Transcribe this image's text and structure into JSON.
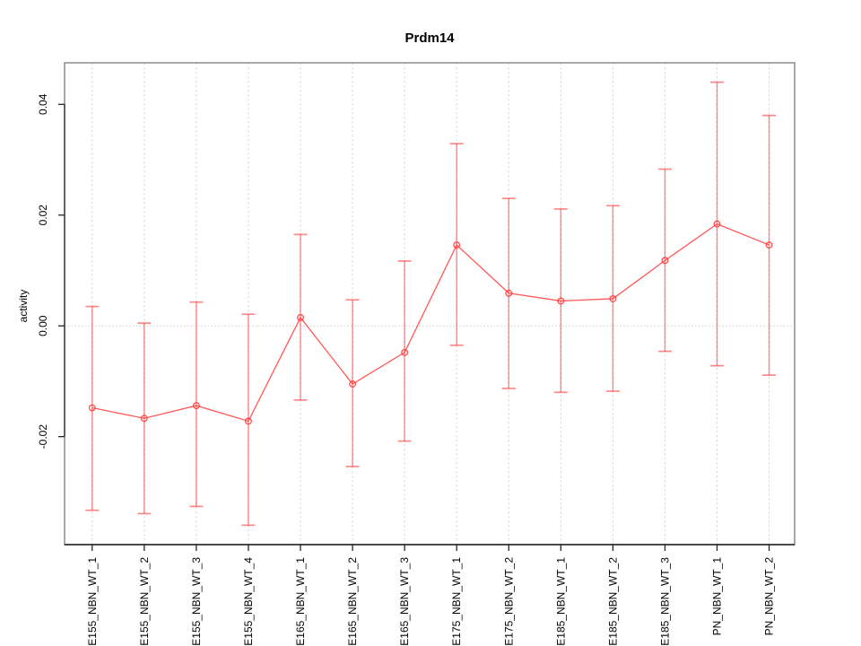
{
  "page": {
    "background": "#ffffff"
  },
  "chart_data": {
    "type": "line",
    "title": "Prdm14",
    "xlabel": "",
    "ylabel": "activity",
    "legend": "none",
    "grid": "vertical-dashed-plus-dotted-zero-line",
    "marker": "open-circle",
    "categories": [
      "E155_NBN_WT_1",
      "E155_NBN_WT_2",
      "E155_NBN_WT_3",
      "E155_NBN_WT_4",
      "E165_NBN_WT_1",
      "E165_NBN_WT_2",
      "E165_NBN_WT_3",
      "E175_NBN_WT_1",
      "E175_NBN_WT_2",
      "E185_NBN_WT_1",
      "E185_NBN_WT_2",
      "E185_NBN_WT_3",
      "PN_NBN_WT_1",
      "PN_NBN_WT_2"
    ],
    "series": [
      {
        "name": "activity",
        "values": [
          -0.0148,
          -0.0167,
          -0.0144,
          -0.0172,
          0.0015,
          -0.0105,
          -0.0048,
          0.0146,
          0.0059,
          0.0045,
          0.0049,
          0.0118,
          0.0184,
          0.0146
        ],
        "error_low": [
          -0.0333,
          -0.0339,
          -0.0326,
          -0.036,
          -0.0134,
          -0.0254,
          -0.0208,
          -0.0035,
          -0.0113,
          -0.012,
          -0.0118,
          -0.0046,
          -0.0072,
          -0.0089
        ],
        "error_high": [
          0.0035,
          0.0005,
          0.0043,
          0.0021,
          0.0165,
          0.0047,
          0.0117,
          0.0329,
          0.023,
          0.0211,
          0.0217,
          0.0283,
          0.044,
          0.038
        ]
      }
    ],
    "yticks": [
      -0.02,
      0.0,
      0.02,
      0.04
    ],
    "ytick_labels": [
      "-0.02",
      "0.00",
      "0.02",
      "0.04"
    ],
    "ylim": [
      -0.0395,
      0.0475
    ],
    "xlim": [
      0.47,
      14.49
    ],
    "colors": {
      "series": "#ff3b3b",
      "grid": "#d9d9d9",
      "zero_line": "#cccccc",
      "box": "#999999",
      "axis": "#262626",
      "text": "#000000"
    }
  }
}
